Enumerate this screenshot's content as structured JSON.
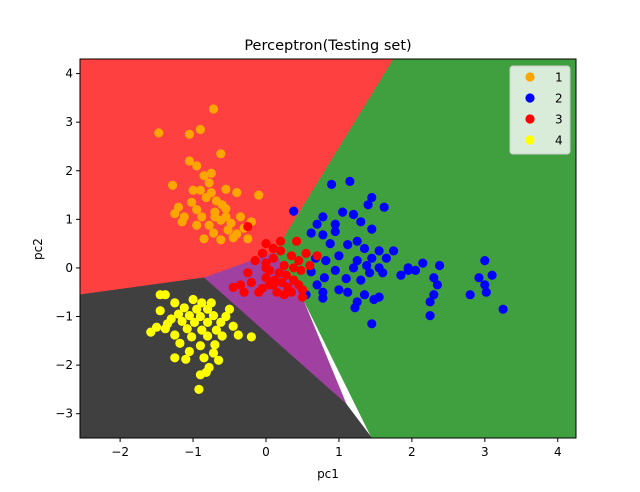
{
  "chart_data": {
    "type": "scatter",
    "title": "Perceptron(Testing set)",
    "xlabel": "pc1",
    "ylabel": "pc2",
    "xlim": [
      -2.55,
      4.25
    ],
    "ylim": [
      -3.5,
      4.3
    ],
    "xticks": [
      -2,
      -1,
      0,
      1,
      2,
      3,
      4
    ],
    "yticks": [
      -3,
      -2,
      -1,
      0,
      1,
      2,
      3,
      4
    ],
    "grid": false,
    "legend_position": "top-right",
    "regions": [
      {
        "class": "1",
        "color": "#ff4040",
        "polygon": [
          [
            -2.55,
            4.3
          ],
          [
            1.75,
            4.3
          ],
          [
            0.12,
            0.32
          ],
          [
            -0.85,
            -0.2
          ],
          [
            -2.55,
            -0.55
          ]
        ]
      },
      {
        "class": "2",
        "color": "#40a040",
        "polygon": [
          [
            1.75,
            4.3
          ],
          [
            4.25,
            4.3
          ],
          [
            4.25,
            -3.5
          ],
          [
            1.45,
            -3.5
          ],
          [
            0.48,
            -0.55
          ],
          [
            0.12,
            0.32
          ]
        ]
      },
      {
        "class": "3",
        "color": "#a040a0",
        "polygon": [
          [
            0.12,
            0.32
          ],
          [
            0.48,
            -0.55
          ],
          [
            1.1,
            -2.8
          ],
          [
            -0.85,
            -0.2
          ]
        ]
      },
      {
        "class": "4",
        "color": "#404040",
        "polygon": [
          [
            -2.55,
            -0.55
          ],
          [
            -0.85,
            -0.2
          ],
          [
            1.1,
            -2.8
          ],
          [
            1.45,
            -3.5
          ],
          [
            -2.55,
            -3.5
          ]
        ]
      }
    ],
    "series": [
      {
        "name": "1",
        "color": "#ffa500",
        "points": [
          [
            -0.72,
            3.27
          ],
          [
            -0.9,
            2.85
          ],
          [
            -1.47,
            2.78
          ],
          [
            -1.05,
            2.75
          ],
          [
            -1.05,
            2.2
          ],
          [
            -0.62,
            2.35
          ],
          [
            -0.95,
            2.1
          ],
          [
            -0.85,
            1.9
          ],
          [
            -0.78,
            1.75
          ],
          [
            -1.28,
            1.7
          ],
          [
            -0.9,
            1.6
          ],
          [
            -0.75,
            1.55
          ],
          [
            -0.55,
            1.62
          ],
          [
            -0.82,
            1.45
          ],
          [
            -0.68,
            1.38
          ],
          [
            -0.4,
            1.55
          ],
          [
            -0.1,
            1.5
          ],
          [
            -1.02,
            1.35
          ],
          [
            -1.2,
            1.25
          ],
          [
            -0.95,
            1.2
          ],
          [
            -0.7,
            1.15
          ],
          [
            -0.55,
            1.22
          ],
          [
            -0.88,
            1.05
          ],
          [
            -0.62,
            0.98
          ],
          [
            -0.78,
            0.88
          ],
          [
            -0.48,
            0.92
          ],
          [
            -0.35,
            1.05
          ],
          [
            -1.12,
            1.05
          ],
          [
            -1.25,
            1.12
          ],
          [
            -0.95,
            0.88
          ],
          [
            -0.72,
            0.72
          ],
          [
            -0.52,
            0.78
          ],
          [
            -0.3,
            0.82
          ],
          [
            -0.45,
            0.62
          ],
          [
            -0.62,
            0.58
          ],
          [
            -0.85,
            0.6
          ],
          [
            -0.2,
            0.95
          ],
          [
            -1.15,
            0.95
          ],
          [
            -0.6,
            1.3
          ],
          [
            -0.75,
            1.95
          ],
          [
            -0.4,
            0.7
          ],
          [
            -0.25,
            0.6
          ],
          [
            -0.7,
            1.05
          ],
          [
            -0.55,
            1.05
          ],
          [
            -1.0,
            1.6
          ]
        ]
      },
      {
        "name": "2",
        "color": "#0000ff",
        "points": [
          [
            1.15,
            1.78
          ],
          [
            0.9,
            1.72
          ],
          [
            1.45,
            1.45
          ],
          [
            1.4,
            1.3
          ],
          [
            1.62,
            1.25
          ],
          [
            1.05,
            1.15
          ],
          [
            1.2,
            1.1
          ],
          [
            0.78,
            1.05
          ],
          [
            0.38,
            1.17
          ],
          [
            0.7,
            0.9
          ],
          [
            0.95,
            0.9
          ],
          [
            1.3,
            0.95
          ],
          [
            1.45,
            0.8
          ],
          [
            0.95,
            0.75
          ],
          [
            0.62,
            0.72
          ],
          [
            0.78,
            0.68
          ],
          [
            1.25,
            0.55
          ],
          [
            0.88,
            0.5
          ],
          [
            1.12,
            0.48
          ],
          [
            1.55,
            0.35
          ],
          [
            1.35,
            0.4
          ],
          [
            1.75,
            0.35
          ],
          [
            1.65,
            0.2
          ],
          [
            1.0,
            0.25
          ],
          [
            1.45,
            0.2
          ],
          [
            1.25,
            0.15
          ],
          [
            0.82,
            0.15
          ],
          [
            0.68,
            0.2
          ],
          [
            1.38,
            0.05
          ],
          [
            1.55,
            0.0
          ],
          [
            1.95,
            0.0
          ],
          [
            2.15,
            0.1
          ],
          [
            1.2,
            0.0
          ],
          [
            0.95,
            -0.05
          ],
          [
            0.62,
            -0.08
          ],
          [
            1.6,
            -0.1
          ],
          [
            1.85,
            -0.15
          ],
          [
            1.42,
            -0.1
          ],
          [
            0.8,
            -0.2
          ],
          [
            1.1,
            -0.22
          ],
          [
            1.3,
            -0.25
          ],
          [
            0.7,
            -0.35
          ],
          [
            1.0,
            -0.45
          ],
          [
            0.78,
            -0.5
          ],
          [
            1.55,
            -0.6
          ],
          [
            1.35,
            -0.55
          ],
          [
            1.12,
            -0.5
          ],
          [
            1.48,
            -0.65
          ],
          [
            0.55,
            -0.55
          ],
          [
            0.78,
            -0.62
          ],
          [
            1.25,
            -0.7
          ],
          [
            1.22,
            -0.82
          ],
          [
            1.45,
            -1.15
          ],
          [
            2.3,
            -0.2
          ],
          [
            2.35,
            -0.35
          ],
          [
            2.3,
            -0.55
          ],
          [
            2.25,
            -0.7
          ],
          [
            2.25,
            -0.98
          ],
          [
            2.05,
            -0.05
          ],
          [
            2.38,
            0.05
          ],
          [
            3.0,
            0.15
          ],
          [
            3.1,
            -0.15
          ],
          [
            3.0,
            -0.35
          ],
          [
            3.02,
            -0.5
          ],
          [
            2.92,
            -0.2
          ],
          [
            2.8,
            -0.55
          ],
          [
            3.25,
            -0.85
          ],
          [
            1.95,
            -0.05
          ]
        ]
      },
      {
        "name": "3",
        "color": "#ff0000",
        "points": [
          [
            0.0,
            0.5
          ],
          [
            0.1,
            0.4
          ],
          [
            -0.05,
            0.3
          ],
          [
            0.2,
            0.35
          ],
          [
            0.1,
            0.2
          ],
          [
            0.35,
            0.25
          ],
          [
            0.45,
            0.15
          ],
          [
            0.0,
            0.1
          ],
          [
            0.25,
            0.05
          ],
          [
            0.38,
            0.0
          ],
          [
            0.05,
            -0.05
          ],
          [
            0.18,
            -0.1
          ],
          [
            0.48,
            -0.05
          ],
          [
            0.28,
            -0.15
          ],
          [
            0.0,
            -0.2
          ],
          [
            0.12,
            -0.25
          ],
          [
            0.38,
            -0.25
          ],
          [
            0.22,
            -0.3
          ],
          [
            0.05,
            -0.35
          ],
          [
            0.3,
            -0.4
          ],
          [
            0.45,
            -0.35
          ],
          [
            0.15,
            -0.5
          ],
          [
            0.35,
            -0.5
          ],
          [
            0.5,
            -0.45
          ],
          [
            -0.05,
            -0.42
          ],
          [
            -0.2,
            -0.3
          ],
          [
            -0.35,
            -0.35
          ],
          [
            -0.45,
            -0.4
          ],
          [
            -0.3,
            -0.5
          ],
          [
            -0.1,
            -0.5
          ],
          [
            0.55,
            0.3
          ],
          [
            0.7,
            0.25
          ],
          [
            0.6,
            0.05
          ],
          [
            0.42,
            0.55
          ],
          [
            -0.25,
            0.85
          ],
          [
            -0.15,
            0.15
          ],
          [
            -0.25,
            -0.1
          ],
          [
            0.5,
            -0.6
          ],
          [
            0.25,
            -0.55
          ],
          [
            0.0,
            0.0
          ],
          [
            0.2,
            0.55
          ],
          [
            0.1,
            -0.35
          ]
        ]
      },
      {
        "name": "4",
        "color": "#ffff00",
        "points": [
          [
            -1.45,
            -0.55
          ],
          [
            -1.38,
            -0.55
          ],
          [
            -1.25,
            -0.72
          ],
          [
            -1.0,
            -0.65
          ],
          [
            -0.88,
            -0.72
          ],
          [
            -0.75,
            -0.72
          ],
          [
            -1.12,
            -0.82
          ],
          [
            -0.95,
            -0.85
          ],
          [
            -0.8,
            -0.85
          ],
          [
            -1.45,
            -0.88
          ],
          [
            -1.2,
            -0.95
          ],
          [
            -1.05,
            -0.98
          ],
          [
            -0.9,
            -1.0
          ],
          [
            -0.72,
            -0.98
          ],
          [
            -0.55,
            -1.0
          ],
          [
            -1.3,
            -1.05
          ],
          [
            -1.15,
            -1.1
          ],
          [
            -0.98,
            -1.12
          ],
          [
            -0.8,
            -1.12
          ],
          [
            -0.62,
            -1.12
          ],
          [
            -0.45,
            -1.2
          ],
          [
            -1.5,
            -1.22
          ],
          [
            -1.38,
            -1.25
          ],
          [
            -1.08,
            -1.25
          ],
          [
            -0.88,
            -1.28
          ],
          [
            -0.68,
            -1.28
          ],
          [
            -1.58,
            -1.32
          ],
          [
            -1.25,
            -1.38
          ],
          [
            -1.02,
            -1.42
          ],
          [
            -0.8,
            -1.4
          ],
          [
            -0.6,
            -1.4
          ],
          [
            -0.38,
            -1.38
          ],
          [
            -0.2,
            -1.42
          ],
          [
            -1.18,
            -1.55
          ],
          [
            -0.9,
            -1.6
          ],
          [
            -0.7,
            -1.58
          ],
          [
            -1.05,
            -1.72
          ],
          [
            -0.72,
            -1.75
          ],
          [
            -0.85,
            -1.85
          ],
          [
            -1.25,
            -1.85
          ],
          [
            -1.1,
            -1.88
          ],
          [
            -0.78,
            -2.05
          ],
          [
            -0.82,
            -2.15
          ],
          [
            -0.9,
            -2.2
          ],
          [
            -0.92,
            -2.5
          ],
          [
            -0.65,
            -1.9
          ],
          [
            -1.35,
            -1.15
          ],
          [
            -0.5,
            -0.85
          ]
        ]
      }
    ]
  }
}
